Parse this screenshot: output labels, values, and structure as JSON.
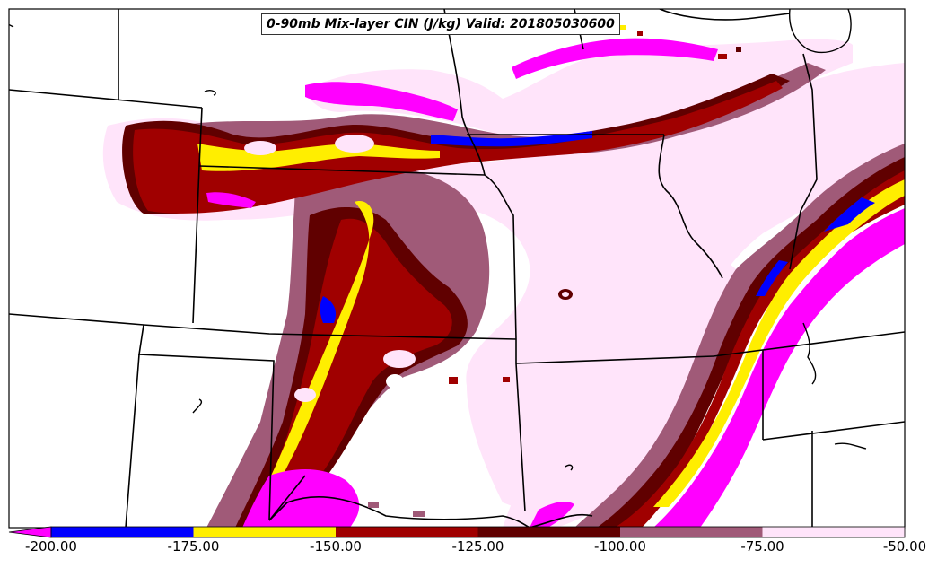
{
  "title": "0-90mb Mix-layer CIN (J/kg) Valid: 201805030600",
  "colorbar": {
    "labels": [
      "-200.00",
      "-175.00",
      "-150.00",
      "-125.00",
      "-100.00",
      "-75.00",
      "-50.00"
    ],
    "colors": [
      "#0000ff",
      "#ffee00",
      "#a00000",
      "#600000",
      "#a05a78",
      "#ffe4fa"
    ],
    "extend_low_color": "#ff00ff"
  },
  "legend_palette": {
    "below_-200": "#ff00ff",
    "-200_to_-175": "#0000ff",
    "-175_to_-150": "#ffee00",
    "-150_to_-125": "#a00000",
    "-125_to_-100": "#600000",
    "-100_to_-75": "#a05a78",
    "-75_to_-50": "#ffe4fa"
  }
}
